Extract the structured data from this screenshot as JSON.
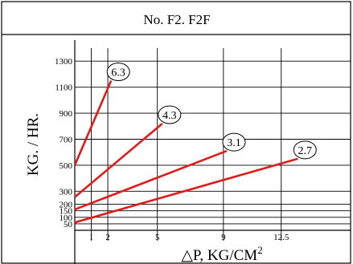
{
  "chart_data": {
    "type": "line",
    "title": "No. F2. F2F",
    "xlabel": "△P,  KG/CM",
    "xlabel_sup": "2",
    "ylabel": "KG. / HR.",
    "x_ticks": [
      1,
      2,
      5,
      9,
      12.5
    ],
    "x_tick_labels": [
      "1",
      "2",
      "5",
      "9",
      "12.5"
    ],
    "y_ticks": [
      50,
      100,
      150,
      200,
      300,
      500,
      700,
      900,
      1100,
      1300
    ],
    "y_tick_labels": [
      "50",
      "100",
      "150",
      "200",
      "300",
      "500",
      "700",
      "900",
      "1100",
      "1300"
    ],
    "xlim": [
      0,
      16.7
    ],
    "ylim": [
      0,
      1400
    ],
    "grid": true,
    "series": [
      {
        "name": "6.3",
        "x": [
          0,
          2.2
        ],
        "y": [
          500,
          1150
        ]
      },
      {
        "name": "4.3",
        "x": [
          0,
          5.3
        ],
        "y": [
          255,
          820
        ]
      },
      {
        "name": "3.1",
        "x": [
          0,
          9.2
        ],
        "y": [
          160,
          610
        ]
      },
      {
        "name": "2.7",
        "x": [
          0,
          13.5
        ],
        "y": [
          60,
          550
        ]
      }
    ],
    "line_color": "#e01b1b"
  }
}
